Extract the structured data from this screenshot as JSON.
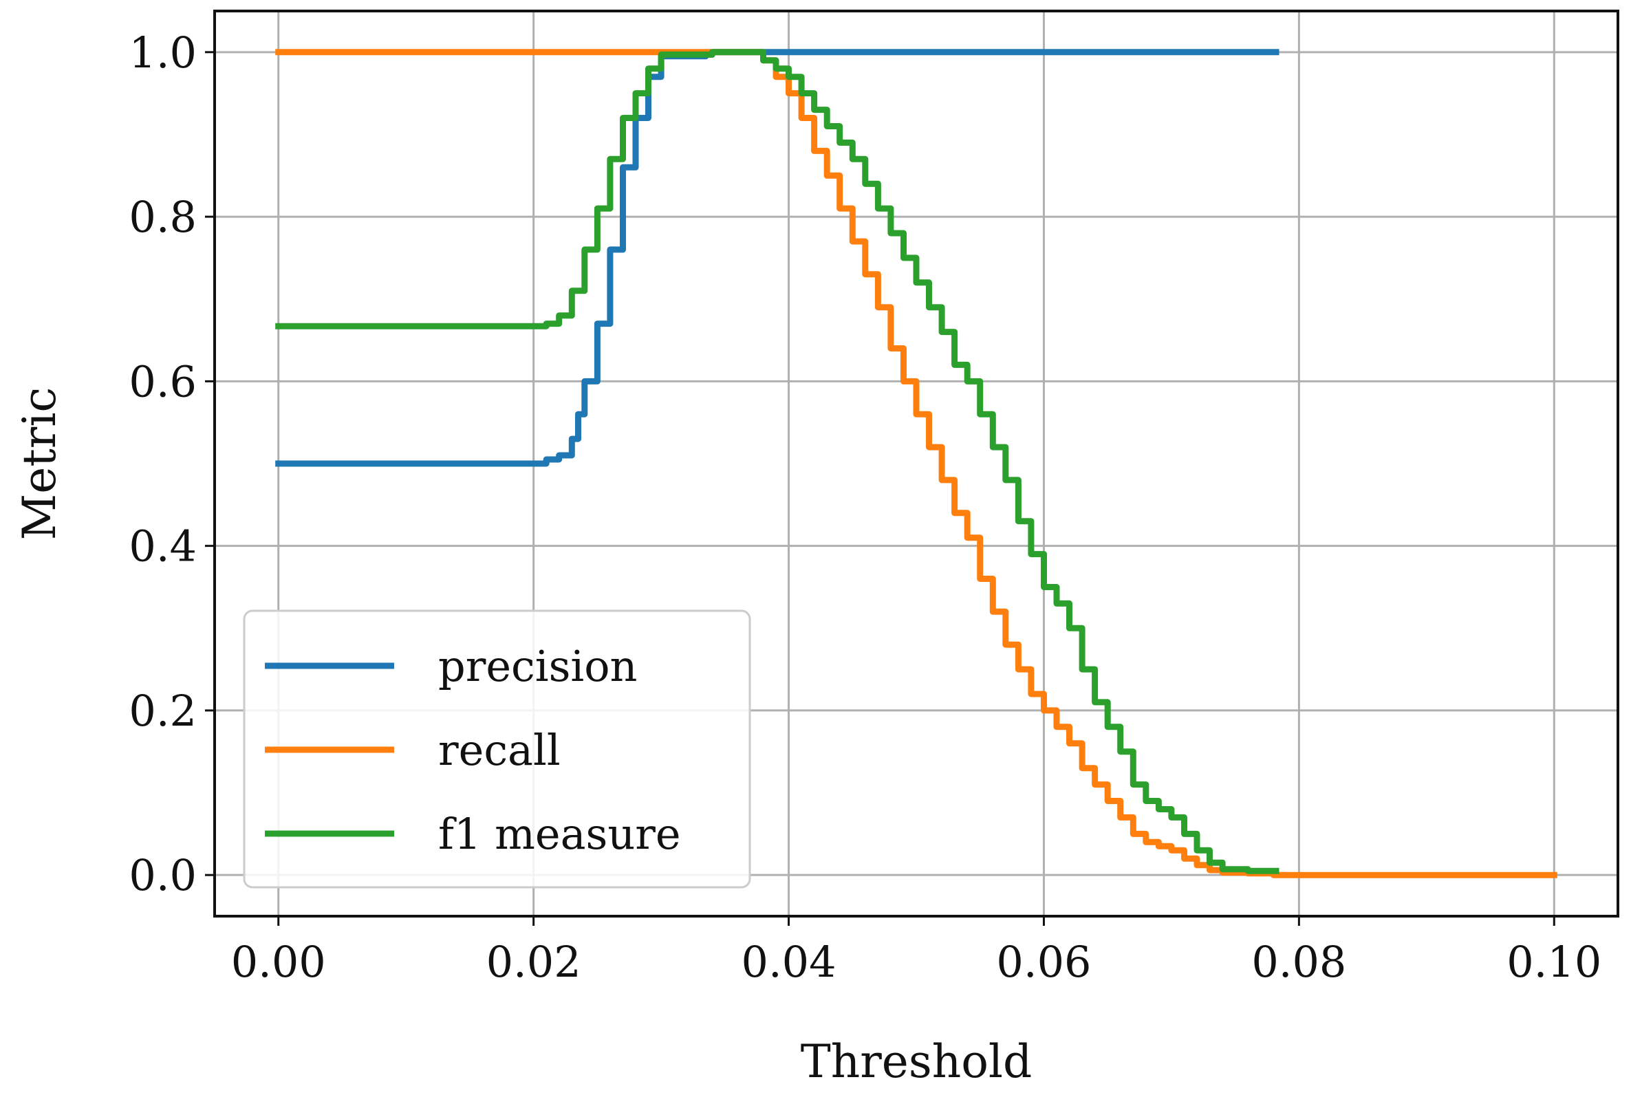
{
  "chart_data": {
    "type": "line",
    "title": "",
    "xlabel": "Threshold",
    "ylabel": "Metric",
    "xlim": [
      -0.005,
      0.105
    ],
    "ylim": [
      -0.05,
      1.05
    ],
    "xticks": [
      0.0,
      0.02,
      0.04,
      0.06,
      0.08,
      0.1
    ],
    "xtick_labels": [
      "0.00",
      "0.02",
      "0.04",
      "0.06",
      "0.08",
      "0.10"
    ],
    "yticks": [
      0.0,
      0.2,
      0.4,
      0.6,
      0.8,
      1.0
    ],
    "ytick_labels": [
      "0.0",
      "0.2",
      "0.4",
      "0.6",
      "0.8",
      "1.0"
    ],
    "grid": true,
    "legend_position": "lower-left",
    "series": [
      {
        "name": "precision",
        "color": "#1f77b4",
        "points": [
          [
            0.0,
            0.5
          ],
          [
            0.02,
            0.5
          ],
          [
            0.021,
            0.505
          ],
          [
            0.022,
            0.51
          ],
          [
            0.023,
            0.53
          ],
          [
            0.0235,
            0.56
          ],
          [
            0.024,
            0.6
          ],
          [
            0.025,
            0.67
          ],
          [
            0.026,
            0.76
          ],
          [
            0.027,
            0.86
          ],
          [
            0.028,
            0.92
          ],
          [
            0.029,
            0.97
          ],
          [
            0.03,
            0.995
          ],
          [
            0.0335,
            0.997
          ],
          [
            0.034,
            1.0
          ],
          [
            0.0782,
            1.0
          ]
        ]
      },
      {
        "name": "recall",
        "color": "#ff7f0e",
        "points": [
          [
            0.0,
            1.0
          ],
          [
            0.037,
            1.0
          ],
          [
            0.038,
            0.99
          ],
          [
            0.039,
            0.97
          ],
          [
            0.04,
            0.95
          ],
          [
            0.041,
            0.92
          ],
          [
            0.042,
            0.88
          ],
          [
            0.043,
            0.85
          ],
          [
            0.044,
            0.81
          ],
          [
            0.045,
            0.77
          ],
          [
            0.046,
            0.73
          ],
          [
            0.047,
            0.69
          ],
          [
            0.048,
            0.64
          ],
          [
            0.049,
            0.6
          ],
          [
            0.05,
            0.56
          ],
          [
            0.051,
            0.52
          ],
          [
            0.052,
            0.48
          ],
          [
            0.053,
            0.44
          ],
          [
            0.054,
            0.41
          ],
          [
            0.055,
            0.36
          ],
          [
            0.056,
            0.32
          ],
          [
            0.057,
            0.28
          ],
          [
            0.058,
            0.25
          ],
          [
            0.059,
            0.22
          ],
          [
            0.06,
            0.2
          ],
          [
            0.061,
            0.18
          ],
          [
            0.062,
            0.16
          ],
          [
            0.063,
            0.13
          ],
          [
            0.064,
            0.11
          ],
          [
            0.065,
            0.09
          ],
          [
            0.066,
            0.07
          ],
          [
            0.067,
            0.05
          ],
          [
            0.068,
            0.04
          ],
          [
            0.069,
            0.035
          ],
          [
            0.07,
            0.03
          ],
          [
            0.071,
            0.02
          ],
          [
            0.072,
            0.012
          ],
          [
            0.073,
            0.006
          ],
          [
            0.074,
            0.003
          ],
          [
            0.076,
            0.002
          ],
          [
            0.078,
            0.0
          ],
          [
            0.1,
            0.0
          ]
        ]
      },
      {
        "name": "f1 measure",
        "color": "#2ca02c",
        "points": [
          [
            0.0,
            0.667
          ],
          [
            0.02,
            0.667
          ],
          [
            0.021,
            0.67
          ],
          [
            0.022,
            0.68
          ],
          [
            0.023,
            0.71
          ],
          [
            0.024,
            0.76
          ],
          [
            0.025,
            0.81
          ],
          [
            0.026,
            0.87
          ],
          [
            0.027,
            0.92
          ],
          [
            0.028,
            0.95
          ],
          [
            0.029,
            0.98
          ],
          [
            0.03,
            0.997
          ],
          [
            0.034,
            1.0
          ],
          [
            0.037,
            1.0
          ],
          [
            0.038,
            0.99
          ],
          [
            0.039,
            0.98
          ],
          [
            0.04,
            0.97
          ],
          [
            0.041,
            0.95
          ],
          [
            0.042,
            0.93
          ],
          [
            0.043,
            0.91
          ],
          [
            0.044,
            0.89
          ],
          [
            0.045,
            0.87
          ],
          [
            0.046,
            0.84
          ],
          [
            0.047,
            0.81
          ],
          [
            0.048,
            0.78
          ],
          [
            0.049,
            0.75
          ],
          [
            0.05,
            0.72
          ],
          [
            0.051,
            0.69
          ],
          [
            0.052,
            0.66
          ],
          [
            0.053,
            0.62
          ],
          [
            0.054,
            0.6
          ],
          [
            0.055,
            0.56
          ],
          [
            0.056,
            0.52
          ],
          [
            0.057,
            0.48
          ],
          [
            0.058,
            0.43
          ],
          [
            0.059,
            0.39
          ],
          [
            0.06,
            0.35
          ],
          [
            0.061,
            0.33
          ],
          [
            0.062,
            0.3
          ],
          [
            0.063,
            0.25
          ],
          [
            0.064,
            0.21
          ],
          [
            0.065,
            0.18
          ],
          [
            0.066,
            0.15
          ],
          [
            0.067,
            0.11
          ],
          [
            0.068,
            0.09
          ],
          [
            0.069,
            0.08
          ],
          [
            0.07,
            0.07
          ],
          [
            0.071,
            0.05
          ],
          [
            0.072,
            0.03
          ],
          [
            0.073,
            0.015
          ],
          [
            0.074,
            0.007
          ],
          [
            0.076,
            0.005
          ],
          [
            0.0782,
            0.005
          ]
        ]
      }
    ]
  }
}
